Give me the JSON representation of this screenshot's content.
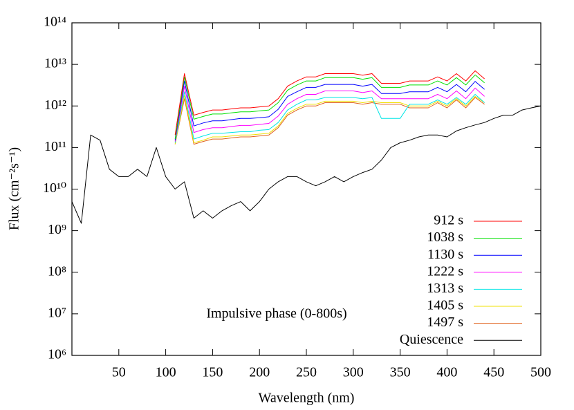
{
  "chart_data": {
    "type": "line",
    "log_y": true,
    "legend": "lower right",
    "annotation": "Impulsive phase (0-800s)",
    "x_label": "Wavelength (nm)",
    "y_label": "Flux (cm⁻²s⁻¹)",
    "xlim": [
      0,
      500
    ],
    "xticks": [
      50,
      100,
      150,
      200,
      250,
      300,
      350,
      400,
      450,
      500
    ],
    "ylim": [
      1000000,
      100000000000000
    ],
    "yticks": [
      {
        "value": 1000000,
        "label": "10⁶"
      },
      {
        "value": 10000000,
        "label": "10⁷"
      },
      {
        "value": 100000000,
        "label": "10⁸"
      },
      {
        "value": 1000000000,
        "label": "10⁹"
      },
      {
        "value": 10000000000,
        "label": "10¹⁰"
      },
      {
        "value": 100000000000,
        "label": "10¹¹"
      },
      {
        "value": 1000000000000,
        "label": "10¹²"
      },
      {
        "value": 10000000000000,
        "label": "10¹³"
      },
      {
        "value": 100000000000000,
        "label": "10¹⁴"
      }
    ],
    "x": [
      0,
      10,
      20,
      30,
      40,
      50,
      60,
      70,
      80,
      90,
      100,
      110,
      120,
      130,
      140,
      150,
      160,
      170,
      180,
      190,
      200,
      210,
      220,
      230,
      240,
      250,
      260,
      270,
      280,
      290,
      300,
      310,
      320,
      330,
      340,
      350,
      360,
      370,
      380,
      390,
      400,
      410,
      420,
      430,
      440,
      450,
      460,
      470,
      480,
      490,
      500
    ],
    "series": [
      {
        "name": "912 s",
        "color": "#ff0000",
        "values": [
          null,
          null,
          null,
          null,
          null,
          null,
          null,
          null,
          null,
          null,
          null,
          200000000000.0,
          6000000000000.0,
          600000000000.0,
          700000000000.0,
          800000000000.0,
          800000000000.0,
          850000000000.0,
          900000000000.0,
          900000000000.0,
          950000000000.0,
          1000000000000.0,
          1500000000000.0,
          3000000000000.0,
          4000000000000.0,
          5000000000000.0,
          5000000000000.0,
          6000000000000.0,
          6000000000000.0,
          6000000000000.0,
          6000000000000.0,
          5500000000000.0,
          6000000000000.0,
          3500000000000.0,
          3500000000000.0,
          3500000000000.0,
          4000000000000.0,
          4000000000000.0,
          4000000000000.0,
          5000000000000.0,
          4000000000000.0,
          6000000000000.0,
          4000000000000.0,
          7000000000000.0,
          4500000000000.0,
          null,
          null,
          null,
          null,
          null,
          null
        ]
      },
      {
        "name": "1038 s",
        "color": "#00e000",
        "values": [
          null,
          null,
          null,
          null,
          null,
          null,
          null,
          null,
          null,
          null,
          null,
          160000000000.0,
          5000000000000.0,
          480000000000.0,
          560000000000.0,
          640000000000.0,
          640000000000.0,
          680000000000.0,
          720000000000.0,
          720000000000.0,
          760000000000.0,
          800000000000.0,
          1200000000000.0,
          2400000000000.0,
          3200000000000.0,
          4000000000000.0,
          4000000000000.0,
          4800000000000.0,
          4800000000000.0,
          4800000000000.0,
          4800000000000.0,
          4400000000000.0,
          4800000000000.0,
          2800000000000.0,
          2800000000000.0,
          2800000000000.0,
          3200000000000.0,
          3200000000000.0,
          3200000000000.0,
          4000000000000.0,
          3200000000000.0,
          4800000000000.0,
          3200000000000.0,
          5600000000000.0,
          3600000000000.0,
          null,
          null,
          null,
          null,
          null,
          null
        ]
      },
      {
        "name": "1130 s",
        "color": "#0000ff",
        "values": [
          null,
          null,
          null,
          null,
          null,
          null,
          null,
          null,
          null,
          null,
          null,
          150000000000.0,
          4000000000000.0,
          330000000000.0,
          390000000000.0,
          440000000000.0,
          440000000000.0,
          470000000000.0,
          500000000000.0,
          500000000000.0,
          520000000000.0,
          550000000000.0,
          830000000000.0,
          1700000000000.0,
          2200000000000.0,
          2800000000000.0,
          2800000000000.0,
          3300000000000.0,
          3300000000000.0,
          3300000000000.0,
          3300000000000.0,
          3000000000000.0,
          3300000000000.0,
          2000000000000.0,
          2000000000000.0,
          2000000000000.0,
          2200000000000.0,
          2200000000000.0,
          2200000000000.0,
          2800000000000.0,
          2200000000000.0,
          3300000000000.0,
          2200000000000.0,
          3900000000000.0,
          2500000000000.0,
          null,
          null,
          null,
          null,
          null,
          null
        ]
      },
      {
        "name": "1222 s",
        "color": "#ff00ff",
        "values": [
          null,
          null,
          null,
          null,
          null,
          null,
          null,
          null,
          null,
          null,
          null,
          140000000000.0,
          3000000000000.0,
          230000000000.0,
          270000000000.0,
          300000000000.0,
          300000000000.0,
          320000000000.0,
          340000000000.0,
          340000000000.0,
          360000000000.0,
          380000000000.0,
          570000000000.0,
          1100000000000.0,
          1500000000000.0,
          1900000000000.0,
          1900000000000.0,
          2300000000000.0,
          2300000000000.0,
          2300000000000.0,
          2300000000000.0,
          2100000000000.0,
          2300000000000.0,
          1500000000000.0,
          1500000000000.0,
          1500000000000.0,
          1500000000000.0,
          1500000000000.0,
          1500000000000.0,
          1900000000000.0,
          1500000000000.0,
          2300000000000.0,
          1500000000000.0,
          2700000000000.0,
          1700000000000.0,
          null,
          null,
          null,
          null,
          null,
          null
        ]
      },
      {
        "name": "1313 s",
        "color": "#00e5e5",
        "values": [
          null,
          null,
          null,
          null,
          null,
          null,
          null,
          null,
          null,
          null,
          null,
          130000000000.0,
          2200000000000.0,
          160000000000.0,
          190000000000.0,
          220000000000.0,
          220000000000.0,
          230000000000.0,
          240000000000.0,
          240000000000.0,
          260000000000.0,
          270000000000.0,
          400000000000.0,
          800000000000.0,
          1100000000000.0,
          1400000000000.0,
          1400000000000.0,
          1600000000000.0,
          1600000000000.0,
          1600000000000.0,
          1600000000000.0,
          1500000000000.0,
          1600000000000.0,
          500000000000.0,
          500000000000.0,
          500000000000.0,
          1100000000000.0,
          1100000000000.0,
          1100000000000.0,
          1400000000000.0,
          1100000000000.0,
          1600000000000.0,
          1100000000000.0,
          1900000000000.0,
          1200000000000.0,
          null,
          null,
          null,
          null,
          null,
          null
        ]
      },
      {
        "name": "1405 s",
        "color": "#f0e000",
        "values": [
          null,
          null,
          null,
          null,
          null,
          null,
          null,
          null,
          null,
          null,
          null,
          120000000000.0,
          1800000000000.0,
          130000000000.0,
          150000000000.0,
          180000000000.0,
          180000000000.0,
          190000000000.0,
          200000000000.0,
          200000000000.0,
          210000000000.0,
          220000000000.0,
          330000000000.0,
          660000000000.0,
          880000000000.0,
          1100000000000.0,
          1100000000000.0,
          1300000000000.0,
          1300000000000.0,
          1300000000000.0,
          1300000000000.0,
          1200000000000.0,
          1300000000000.0,
          1200000000000.0,
          1200000000000.0,
          1200000000000.0,
          1000000000000.0,
          1000000000000.0,
          1000000000000.0,
          1300000000000.0,
          1000000000000.0,
          1500000000000.0,
          1000000000000.0,
          1700000000000.0,
          1200000000000.0,
          null,
          null,
          null,
          null,
          null,
          null
        ]
      },
      {
        "name": "1497 s",
        "color": "#e0601a",
        "values": [
          null,
          null,
          null,
          null,
          null,
          null,
          null,
          null,
          null,
          null,
          null,
          120000000000.0,
          1500000000000.0,
          120000000000.0,
          140000000000.0,
          160000000000.0,
          160000000000.0,
          170000000000.0,
          180000000000.0,
          180000000000.0,
          190000000000.0,
          200000000000.0,
          300000000000.0,
          600000000000.0,
          800000000000.0,
          1000000000000.0,
          1000000000000.0,
          1200000000000.0,
          1200000000000.0,
          1200000000000.0,
          1200000000000.0,
          1100000000000.0,
          1200000000000.0,
          1100000000000.0,
          1100000000000.0,
          1100000000000.0,
          900000000000.0,
          900000000000.0,
          900000000000.0,
          1200000000000.0,
          900000000000.0,
          1400000000000.0,
          900000000000.0,
          1600000000000.0,
          1100000000000.0,
          null,
          null,
          null,
          null,
          null,
          null
        ]
      },
      {
        "name": "Quiescence",
        "color": "#000000",
        "values": [
          5000000000.0,
          1500000000.0,
          200000000000.0,
          150000000000.0,
          30000000000.0,
          20000000000.0,
          20000000000.0,
          30000000000.0,
          20000000000.0,
          100000000000.0,
          20000000000.0,
          10000000000.0,
          15000000000.0,
          2000000000.0,
          3000000000.0,
          2000000000.0,
          3000000000.0,
          4000000000.0,
          5000000000.0,
          3000000000.0,
          5000000000.0,
          10000000000.0,
          15000000000.0,
          20000000000.0,
          20000000000.0,
          15000000000.0,
          12000000000.0,
          15000000000.0,
          20000000000.0,
          15000000000.0,
          20000000000.0,
          25000000000.0,
          30000000000.0,
          50000000000.0,
          100000000000.0,
          130000000000.0,
          150000000000.0,
          180000000000.0,
          200000000000.0,
          200000000000.0,
          180000000000.0,
          250000000000.0,
          300000000000.0,
          350000000000.0,
          400000000000.0,
          500000000000.0,
          600000000000.0,
          600000000000.0,
          800000000000.0,
          900000000000.0,
          1000000000000.0
        ]
      }
    ]
  }
}
